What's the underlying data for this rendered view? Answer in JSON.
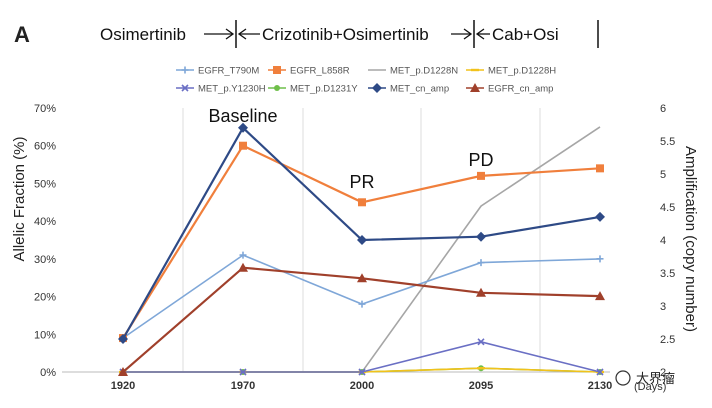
{
  "chart_data": {
    "type": "line",
    "panel_label": "A",
    "treatment_phases": [
      {
        "label": "Osimertinib",
        "from": 1920,
        "to": 1950
      },
      {
        "label": "Crizotinib+Osimertinib",
        "from": 1950,
        "to": 2095
      },
      {
        "label": "Cab+Osi",
        "from": 2095,
        "to": 2130
      }
    ],
    "x": [
      1920,
      1970,
      2000,
      2095,
      2130
    ],
    "x_tick_labels": [
      "1920",
      "1970",
      "2000",
      "2095",
      "2130"
    ],
    "xlabel": "(Days)",
    "ylabel": "Allelic Fraction (%)",
    "ylim": [
      0,
      70
    ],
    "y_ticks": [
      "0%",
      "10%",
      "20%",
      "30%",
      "40%",
      "50%",
      "60%",
      "70%"
    ],
    "y2label": "Amplification (copy number)",
    "y2lim": [
      2,
      6
    ],
    "y2_ticks": [
      "2",
      "2.5",
      "3",
      "3.5",
      "4",
      "4.5",
      "5",
      "5.5",
      "6"
    ],
    "grid": "vertical",
    "legend_position": "top",
    "series": [
      {
        "name": "EGFR_T790M",
        "axis": "left",
        "color": "#7fa7d8",
        "marker": "plus",
        "values": [
          9,
          31,
          18,
          29,
          30
        ]
      },
      {
        "name": "EGFR_L858R",
        "axis": "left",
        "color": "#f07f3c",
        "marker": "square",
        "values": [
          9,
          60,
          45,
          52,
          54
        ]
      },
      {
        "name": "MET_p.D1228N",
        "axis": "left",
        "color": "#a6a6a6",
        "marker": "none",
        "values": [
          0,
          0,
          0,
          44,
          65
        ]
      },
      {
        "name": "MET_p.D1228H",
        "axis": "left",
        "color": "#f2c21b",
        "marker": "dash",
        "values": [
          0,
          0,
          0,
          1,
          0
        ]
      },
      {
        "name": "MET_p.Y1230H",
        "axis": "left",
        "color": "#6a6fc4",
        "marker": "x",
        "values": [
          0,
          0,
          0,
          8,
          0
        ]
      },
      {
        "name": "MET_p.D1231Y",
        "axis": "left",
        "color": "#6fbf4a",
        "marker": "circle",
        "values": [
          0,
          0,
          0,
          1,
          0
        ]
      },
      {
        "name": "MET_cn_amp",
        "axis": "right",
        "color": "#2e4a86",
        "marker": "diamond",
        "values": [
          2.5,
          5.7,
          4.0,
          4.05,
          4.35
        ]
      },
      {
        "name": "EGFR_cn_amp",
        "axis": "right",
        "color": "#a0402b",
        "marker": "triangle",
        "values": [
          2.0,
          3.58,
          3.42,
          3.2,
          3.15
        ]
      }
    ],
    "annotations": [
      {
        "text": "Baseline",
        "x": 1970
      },
      {
        "text": "PR",
        "x": 2000
      },
      {
        "text": "PD",
        "x": 2095
      }
    ]
  },
  "watermark": "大界瘤"
}
